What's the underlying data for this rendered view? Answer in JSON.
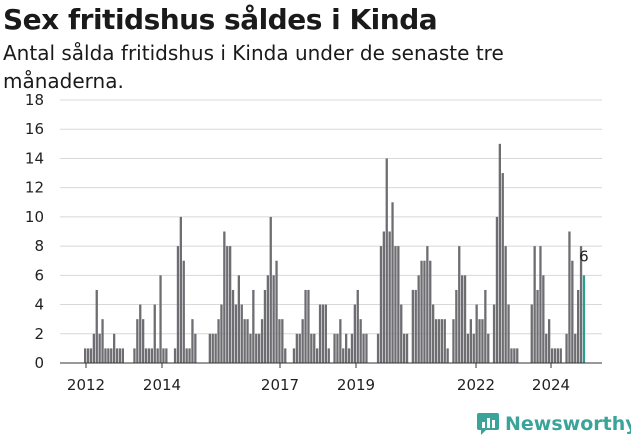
{
  "header": {
    "title": "Sex fritidshus såldes i Kinda",
    "subtitle": "Antal sålda fritidshus i Kinda under de senaste tre månaderna."
  },
  "brand": {
    "name": "Newsworthy",
    "color": "#3aa39a",
    "icon": "newsworthy-logo-icon"
  },
  "colors": {
    "bar": "#6e6e72",
    "highlight": "#2a9d8f",
    "grid": "#d8d8d8"
  },
  "chart_data": {
    "type": "bar",
    "title": "Sex fritidshus såldes i Kinda",
    "subtitle": "Antal sålda fritidshus i Kinda under de senaste tre månaderna.",
    "xlabel": "",
    "ylabel": "",
    "ylim": [
      0,
      18
    ],
    "yticks": [
      0,
      2,
      4,
      6,
      8,
      10,
      12,
      14,
      16,
      18
    ],
    "xticks": [
      "2012",
      "2014",
      "2017",
      "2019",
      "2022",
      "2024"
    ],
    "grid": true,
    "legend": "none",
    "highlight": {
      "label": "6",
      "value": 6
    },
    "values": [
      1,
      1,
      1,
      2,
      5,
      2,
      3,
      1,
      1,
      1,
      2,
      1,
      1,
      1,
      0,
      0,
      0,
      1,
      3,
      4,
      3,
      1,
      1,
      1,
      4,
      1,
      6,
      1,
      1,
      0,
      0,
      1,
      8,
      10,
      7,
      1,
      1,
      3,
      2,
      0,
      0,
      0,
      0,
      2,
      2,
      2,
      3,
      4,
      9,
      8,
      8,
      5,
      4,
      6,
      4,
      3,
      3,
      2,
      5,
      2,
      2,
      3,
      5,
      6,
      10,
      6,
      7,
      3,
      3,
      1,
      0,
      0,
      1,
      2,
      2,
      3,
      5,
      5,
      2,
      2,
      1,
      4,
      4,
      4,
      1,
      0,
      2,
      2,
      3,
      1,
      2,
      1,
      2,
      4,
      5,
      3,
      2,
      2,
      0,
      0,
      0,
      2,
      8,
      9,
      14,
      9,
      11,
      8,
      8,
      4,
      2,
      2,
      0,
      5,
      5,
      6,
      7,
      7,
      8,
      7,
      4,
      3,
      3,
      3,
      3,
      1,
      0,
      3,
      5,
      8,
      6,
      6,
      2,
      3,
      2,
      4,
      3,
      3,
      5,
      2,
      0,
      4,
      10,
      15,
      13,
      8,
      4,
      1,
      1,
      1,
      0,
      0,
      0,
      0,
      4,
      8,
      5,
      8,
      6,
      2,
      3,
      1,
      1,
      1,
      1,
      0,
      2,
      9,
      7,
      2,
      5,
      8,
      6
    ]
  }
}
